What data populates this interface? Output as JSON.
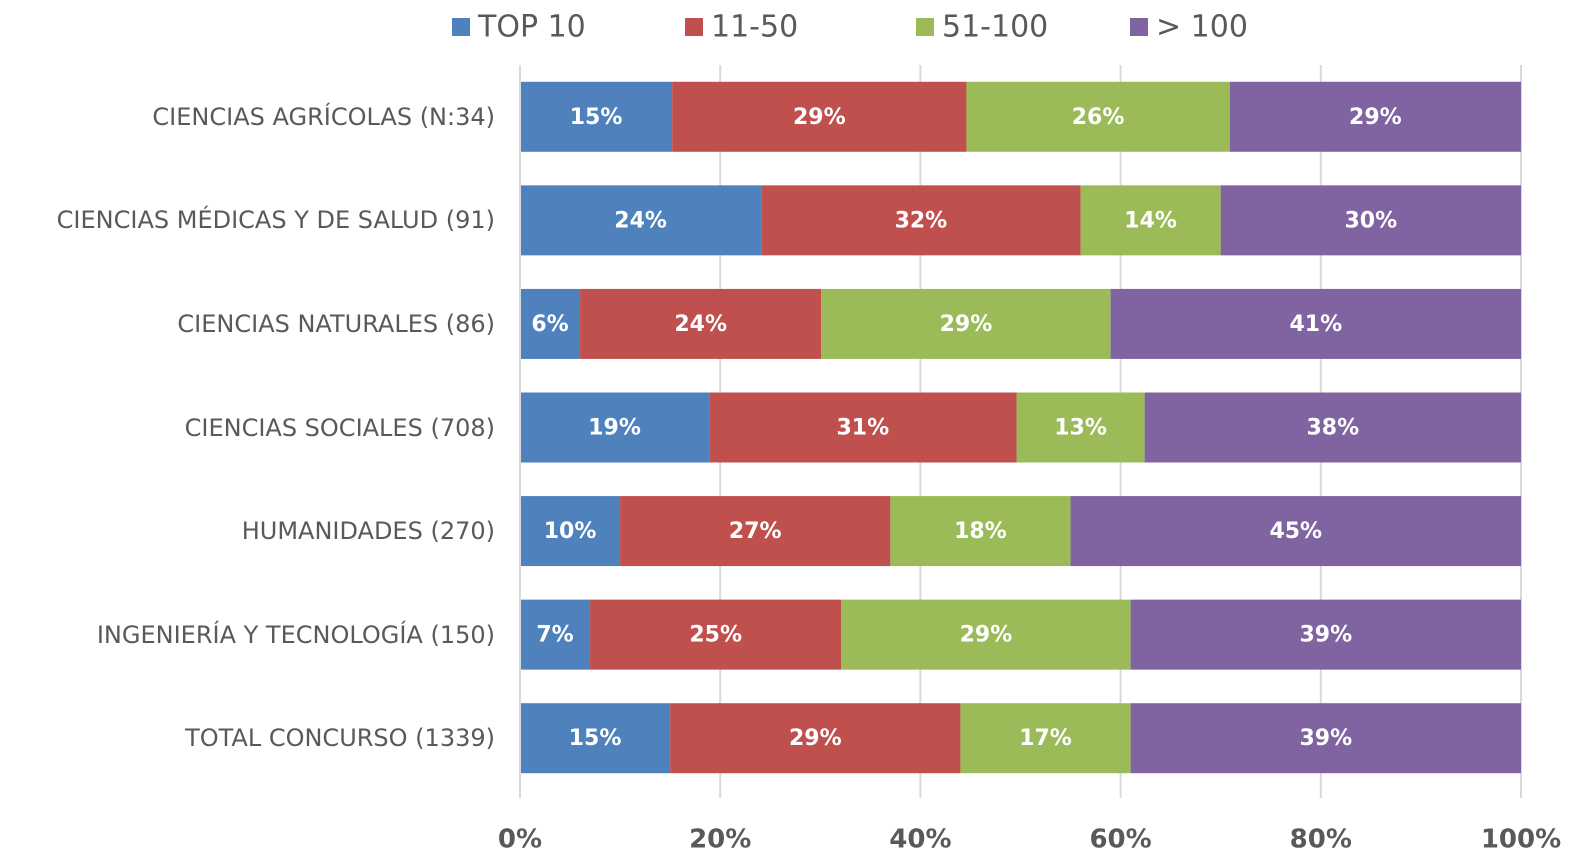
{
  "chart_data": {
    "type": "stacked_bar_horizontal",
    "categories": [
      "CIENCIAS AGRÍCOLAS (N:34)",
      "CIENCIAS MÉDICAS Y DE SALUD (91)",
      "CIENCIAS NATURALES (86)",
      "CIENCIAS SOCIALES (708)",
      "HUMANIDADES (270)",
      "INGENIERÍA Y TECNOLOGÍA (150)",
      "TOTAL CONCURSO (1339)"
    ],
    "series": [
      {
        "name": "TOP 10",
        "color": "#4f81bd",
        "values": [
          15.2,
          24.1,
          6.0,
          18.9,
          10.0,
          7.0,
          15.0
        ],
        "value_labels": [
          "15%",
          "24%",
          "6%",
          "19%",
          "10%",
          "7%",
          "15%"
        ]
      },
      {
        "name": "11-50",
        "color": "#c0504d",
        "values": [
          29.4,
          31.9,
          24.1,
          30.7,
          27.0,
          25.1,
          29.0
        ],
        "value_labels": [
          "29%",
          "32%",
          "24%",
          "31%",
          "27%",
          "25%",
          "29%"
        ]
      },
      {
        "name": "51-100",
        "color": "#9bbb59",
        "values": [
          26.3,
          14.0,
          28.9,
          12.8,
          18.0,
          28.9,
          17.0
        ],
        "value_labels": [
          "26%",
          "14%",
          "29%",
          "13%",
          "18%",
          "29%",
          "17%"
        ]
      },
      {
        "name": "> 100",
        "color": "#8064a2",
        "values": [
          29.1,
          30.0,
          41.0,
          37.6,
          45.0,
          39.0,
          39.0
        ],
        "value_labels": [
          "29%",
          "30%",
          "41%",
          "38%",
          "45%",
          "39%",
          "39%"
        ]
      }
    ],
    "xlim": [
      0,
      100
    ],
    "xticks": [
      {
        "value": 0,
        "label": "0%"
      },
      {
        "value": 20,
        "label": "20%"
      },
      {
        "value": 40,
        "label": "40%"
      },
      {
        "value": 60,
        "label": "60%"
      },
      {
        "value": 80,
        "label": "80%"
      },
      {
        "value": 100,
        "label": "100%"
      }
    ],
    "grid": true,
    "legend": "top"
  }
}
